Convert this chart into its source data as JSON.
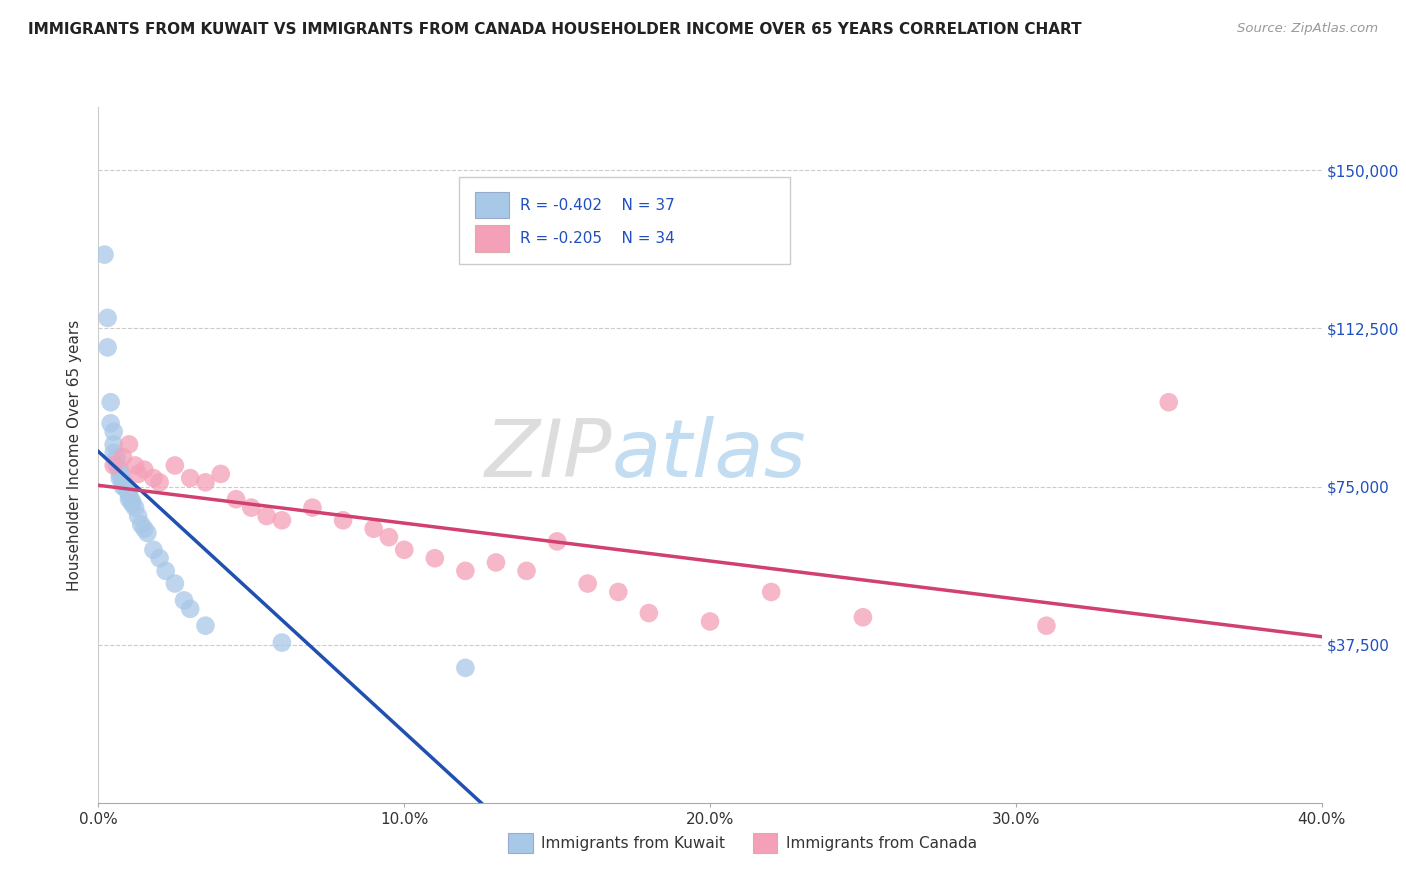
{
  "title": "IMMIGRANTS FROM KUWAIT VS IMMIGRANTS FROM CANADA HOUSEHOLDER INCOME OVER 65 YEARS CORRELATION CHART",
  "source": "Source: ZipAtlas.com",
  "ylabel": "Householder Income Over 65 years",
  "xlim": [
    0.0,
    0.4
  ],
  "ylim": [
    0,
    165000
  ],
  "yticks": [
    0,
    37500,
    75000,
    112500,
    150000
  ],
  "ytick_labels": [
    "",
    "$37,500",
    "$75,000",
    "$112,500",
    "$150,000"
  ],
  "xticks": [
    0.0,
    0.1,
    0.2,
    0.3,
    0.4
  ],
  "xtick_labels": [
    "0.0%",
    "10.0%",
    "20.0%",
    "30.0%",
    "40.0%"
  ],
  "kuwait_R": -0.402,
  "kuwait_N": 37,
  "canada_R": -0.205,
  "canada_N": 34,
  "kuwait_color": "#a8c8e8",
  "canada_color": "#f4a0b8",
  "kuwait_line_color": "#2050b0",
  "canada_line_color": "#d04070",
  "watermark_zip": "ZIP",
  "watermark_atlas": "atlas",
  "background_color": "#ffffff",
  "grid_color": "#cccccc",
  "kuwait_x": [
    0.002,
    0.003,
    0.003,
    0.004,
    0.004,
    0.005,
    0.005,
    0.005,
    0.006,
    0.006,
    0.007,
    0.007,
    0.007,
    0.008,
    0.008,
    0.008,
    0.009,
    0.009,
    0.01,
    0.01,
    0.01,
    0.011,
    0.011,
    0.012,
    0.013,
    0.014,
    0.015,
    0.016,
    0.018,
    0.02,
    0.022,
    0.025,
    0.028,
    0.03,
    0.035,
    0.06,
    0.12
  ],
  "kuwait_y": [
    130000,
    115000,
    108000,
    95000,
    90000,
    88000,
    85000,
    83000,
    82000,
    80000,
    79000,
    78000,
    77000,
    76500,
    76000,
    75000,
    75000,
    74500,
    73500,
    73000,
    72000,
    71500,
    71000,
    70000,
    68000,
    66000,
    65000,
    64000,
    60000,
    58000,
    55000,
    52000,
    48000,
    46000,
    42000,
    38000,
    32000
  ],
  "canada_x": [
    0.005,
    0.008,
    0.01,
    0.012,
    0.013,
    0.015,
    0.018,
    0.02,
    0.025,
    0.03,
    0.035,
    0.04,
    0.045,
    0.05,
    0.055,
    0.06,
    0.07,
    0.08,
    0.09,
    0.095,
    0.1,
    0.11,
    0.12,
    0.13,
    0.14,
    0.15,
    0.16,
    0.17,
    0.18,
    0.2,
    0.22,
    0.25,
    0.31,
    0.35
  ],
  "canada_y": [
    80000,
    82000,
    85000,
    80000,
    78000,
    79000,
    77000,
    76000,
    80000,
    77000,
    76000,
    78000,
    72000,
    70000,
    68000,
    67000,
    70000,
    67000,
    65000,
    63000,
    60000,
    58000,
    55000,
    57000,
    55000,
    62000,
    52000,
    50000,
    45000,
    43000,
    50000,
    44000,
    42000,
    95000
  ],
  "legend_r1": "R = -0.402",
  "legend_n1": "N = 37",
  "legend_r2": "R = -0.205",
  "legend_n2": "N = 34",
  "legend_label1": "Immigrants from Kuwait",
  "legend_label2": "Immigrants from Canada"
}
